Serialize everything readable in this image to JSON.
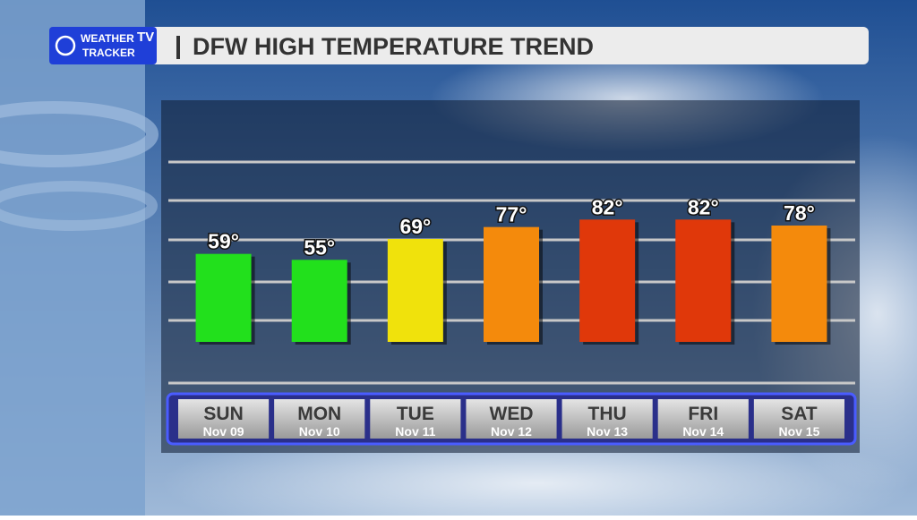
{
  "logo": {
    "line1": "WEATHER",
    "badge": "TV",
    "line2": "TRACKER"
  },
  "chart_data": {
    "type": "bar",
    "title": "DFW HIGH TEMPERATURE TREND",
    "categories": [
      "SUN",
      "MON",
      "TUE",
      "WED",
      "THU",
      "FRI",
      "SAT"
    ],
    "dates": [
      "Nov 09",
      "Nov 10",
      "Nov 11",
      "Nov 12",
      "Nov 13",
      "Nov 14",
      "Nov 15"
    ],
    "values": [
      59,
      55,
      69,
      77,
      82,
      82,
      78
    ],
    "value_labels": [
      "59°",
      "55°",
      "69°",
      "77°",
      "82°",
      "82°",
      "78°"
    ],
    "colors": [
      "#22e01c",
      "#22e01c",
      "#f0e20c",
      "#f48a0c",
      "#e0380a",
      "#e0380a",
      "#f48a0c"
    ],
    "ylim": [
      -24,
      120
    ]
  }
}
